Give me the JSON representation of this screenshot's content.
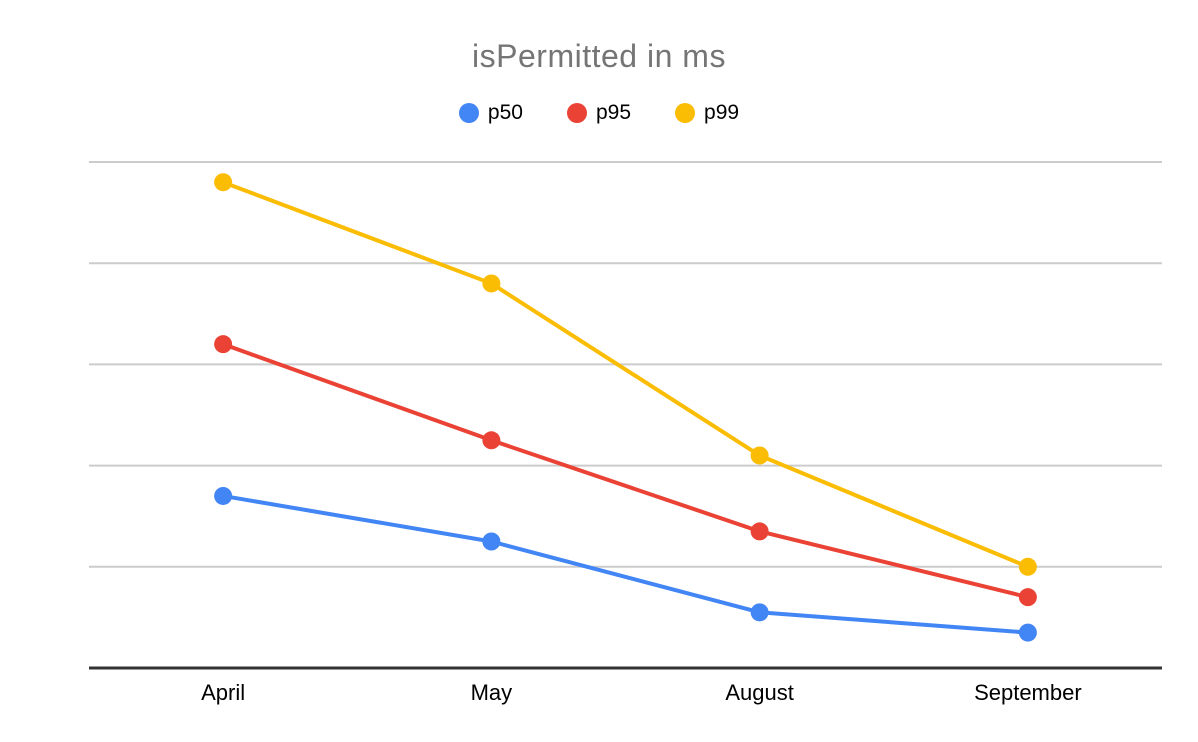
{
  "chart_data": {
    "type": "line",
    "title": "isPermitted in ms",
    "categories": [
      "April",
      "May",
      "August",
      "September"
    ],
    "series": [
      {
        "name": "p50",
        "color": "#4285F4",
        "values": [
          170,
          125,
          55,
          35
        ]
      },
      {
        "name": "p95",
        "color": "#EA4335",
        "values": [
          320,
          225,
          135,
          70
        ]
      },
      {
        "name": "p99",
        "color": "#FBBC04",
        "values": [
          480,
          380,
          210,
          100
        ]
      }
    ],
    "xlabel": "",
    "ylabel": "",
    "ylim": [
      0,
      500
    ],
    "gridline_step": 100,
    "y_tick_labels_visible": false,
    "grid": true,
    "legend_position": "top",
    "title_color": "#757575",
    "axis_color": "#333333",
    "gridline_color": "#cccccc",
    "label_color": "#000000",
    "background": "#ffffff"
  }
}
